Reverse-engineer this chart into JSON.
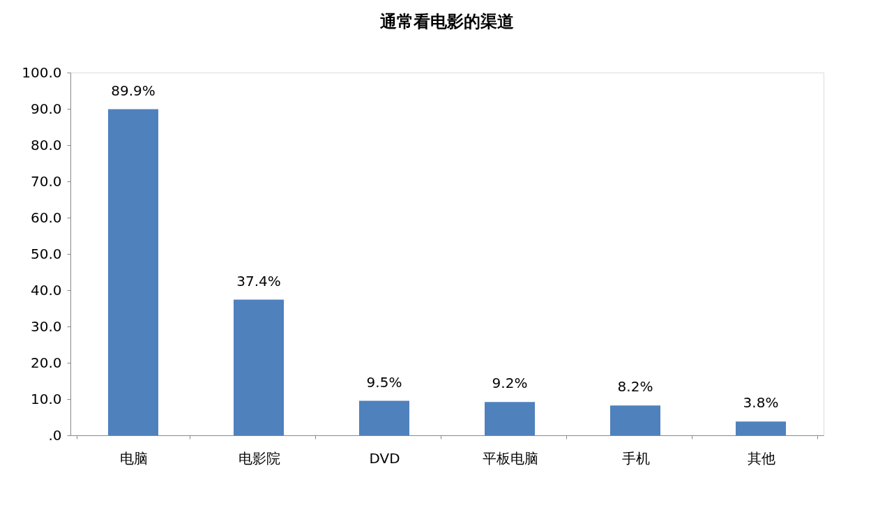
{
  "chart_data": {
    "type": "bar",
    "title": "通常看电影的渠道",
    "categories": [
      "电脑",
      "电影院",
      "DVD",
      "平板电脑",
      "手机",
      "其他"
    ],
    "values": [
      89.9,
      37.4,
      9.5,
      9.2,
      8.2,
      3.8
    ],
    "value_labels": [
      "89.9%",
      "37.4%",
      "9.5%",
      "9.2%",
      "8.2%",
      "3.8%"
    ],
    "color": "#4f81bd",
    "ylim": [
      0,
      100
    ],
    "yticks": [
      {
        "value": 0,
        "label": ".0"
      },
      {
        "value": 10,
        "label": "10.0"
      },
      {
        "value": 20,
        "label": "20.0"
      },
      {
        "value": 30,
        "label": "30.0"
      },
      {
        "value": 40,
        "label": "40.0"
      },
      {
        "value": 50,
        "label": "50.0"
      },
      {
        "value": 60,
        "label": "60.0"
      },
      {
        "value": 70,
        "label": "70.0"
      },
      {
        "value": 80,
        "label": "80.0"
      },
      {
        "value": 90,
        "label": "90.0"
      },
      {
        "value": 100,
        "label": "100.0"
      }
    ],
    "grid": false
  }
}
